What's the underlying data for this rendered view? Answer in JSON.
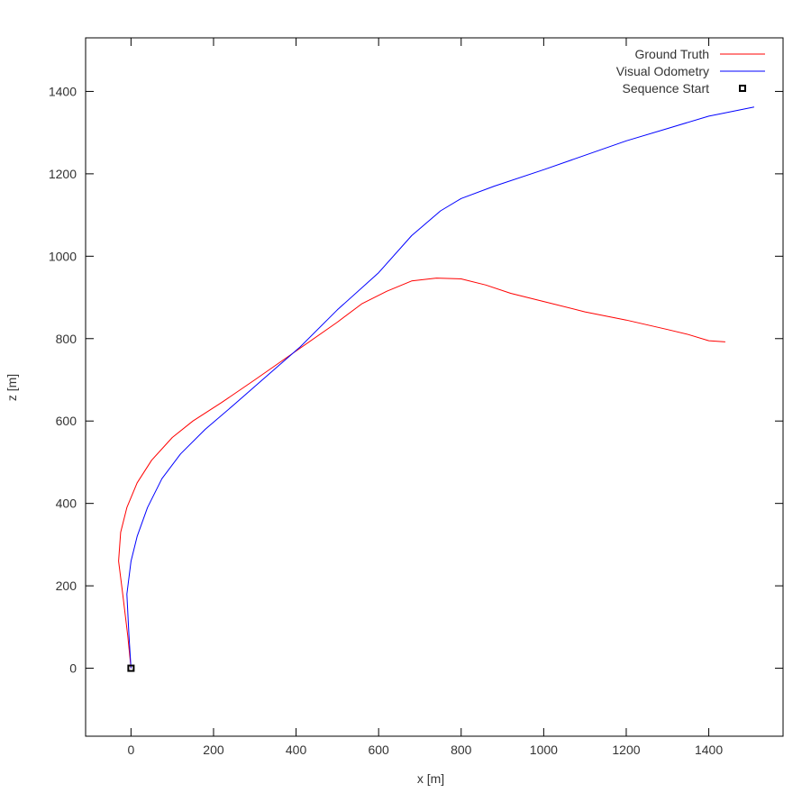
{
  "chart_data": {
    "type": "line",
    "xlabel": "x [m]",
    "ylabel": "z [m]",
    "xlim": [
      -110,
      1580
    ],
    "ylim": [
      -165,
      1530
    ],
    "xticks": [
      0,
      200,
      400,
      600,
      800,
      1000,
      1200,
      1400
    ],
    "yticks": [
      0,
      200,
      400,
      600,
      800,
      1000,
      1200,
      1400
    ],
    "grid": false,
    "legend_position": "top-right",
    "series": [
      {
        "name": "Ground Truth",
        "color": "#ff0000",
        "points": [
          [
            0,
            0
          ],
          [
            -8,
            80
          ],
          [
            -20,
            180
          ],
          [
            -30,
            260
          ],
          [
            -25,
            330
          ],
          [
            -10,
            390
          ],
          [
            15,
            450
          ],
          [
            50,
            505
          ],
          [
            100,
            560
          ],
          [
            150,
            600
          ],
          [
            220,
            645
          ],
          [
            300,
            700
          ],
          [
            400,
            770
          ],
          [
            500,
            840
          ],
          [
            560,
            885
          ],
          [
            620,
            915
          ],
          [
            680,
            940
          ],
          [
            740,
            947
          ],
          [
            800,
            945
          ],
          [
            860,
            930
          ],
          [
            920,
            910
          ],
          [
            1000,
            890
          ],
          [
            1100,
            865
          ],
          [
            1200,
            845
          ],
          [
            1300,
            822
          ],
          [
            1350,
            810
          ],
          [
            1400,
            795
          ],
          [
            1440,
            792
          ]
        ]
      },
      {
        "name": "Visual Odometry",
        "color": "#0000ff",
        "points": [
          [
            0,
            0
          ],
          [
            -5,
            80
          ],
          [
            -10,
            180
          ],
          [
            0,
            260
          ],
          [
            15,
            320
          ],
          [
            40,
            390
          ],
          [
            75,
            460
          ],
          [
            120,
            520
          ],
          [
            180,
            580
          ],
          [
            250,
            640
          ],
          [
            330,
            710
          ],
          [
            410,
            780
          ],
          [
            500,
            870
          ],
          [
            600,
            960
          ],
          [
            680,
            1050
          ],
          [
            750,
            1110
          ],
          [
            800,
            1140
          ],
          [
            880,
            1170
          ],
          [
            1000,
            1210
          ],
          [
            1100,
            1245
          ],
          [
            1200,
            1280
          ],
          [
            1300,
            1310
          ],
          [
            1400,
            1340
          ],
          [
            1510,
            1362
          ]
        ]
      }
    ],
    "markers": [
      {
        "name": "Sequence Start",
        "x": 0,
        "y": 0,
        "shape": "square",
        "color": "#000000"
      }
    ]
  }
}
